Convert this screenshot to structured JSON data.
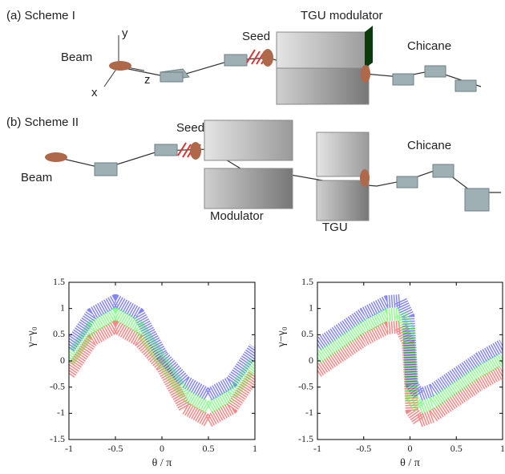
{
  "diagram": {
    "labels": [
      "(a) Scheme I",
      "y",
      "Beam",
      "z",
      "x",
      "Seed",
      "TGU modulator",
      "Chicane",
      "(b) Scheme II",
      "Seed",
      "Beam",
      "Modulator",
      "TGU",
      "Chicane"
    ]
  },
  "chart_data": [
    {
      "type": "line",
      "ylabel": "γ−γ₀",
      "xlabel": "θ / π",
      "x": [
        -1,
        -0.75,
        -0.5,
        -0.25,
        0,
        0.25,
        0.5,
        0.75,
        1
      ],
      "series": [
        {
          "color": "#ff2020",
          "values": [
            -0.25,
            0.4,
            0.65,
            0.4,
            -0.1,
            -0.9,
            -1.15,
            -0.9,
            -0.25
          ]
        },
        {
          "color": "#2020ff",
          "values": [
            0.25,
            0.9,
            1.15,
            0.9,
            0.1,
            -0.4,
            -0.65,
            -0.4,
            0.25
          ]
        },
        {
          "color": "#30ff30",
          "values": [
            0,
            0.65,
            0.9,
            0.65,
            0,
            -0.65,
            -0.9,
            -0.65,
            0
          ]
        }
      ],
      "xlim": [
        -1,
        1
      ],
      "ylim": [
        -1.5,
        1.5
      ],
      "xticks": [
        -1,
        -0.5,
        0,
        0.5,
        1
      ],
      "yticks": [
        -1.5,
        -1,
        -0.5,
        0,
        0.5,
        1,
        1.5
      ]
    },
    {
      "type": "line",
      "ylabel": "γ−γ₀",
      "xlabel": "θ / π",
      "x": [
        -1,
        -0.75,
        -0.5,
        -0.25,
        -0.1,
        -0.02,
        0,
        0.02,
        0.1,
        0.25,
        0.5,
        0.75,
        1
      ],
      "series": [
        {
          "color": "#ff2020",
          "values": [
            -0.2,
            0.1,
            0.4,
            0.63,
            0.65,
            0.35,
            -0.25,
            -0.95,
            -1.15,
            -1.05,
            -0.75,
            -0.45,
            -0.2
          ]
        },
        {
          "color": "#2020ff",
          "values": [
            0.3,
            0.6,
            0.9,
            1.13,
            1.15,
            0.85,
            0.25,
            -0.45,
            -0.65,
            -0.55,
            -0.25,
            0.05,
            0.3
          ]
        },
        {
          "color": "#30ff30",
          "values": [
            0.05,
            0.35,
            0.65,
            0.88,
            0.9,
            0.6,
            0,
            -0.7,
            -0.9,
            -0.8,
            -0.5,
            -0.2,
            0.05
          ]
        }
      ],
      "xlim": [
        -1,
        1
      ],
      "ylim": [
        -1.5,
        1.5
      ],
      "xticks": [
        -1,
        -0.5,
        0,
        0.5,
        1
      ],
      "yticks": [
        -1.5,
        -1,
        -0.5,
        0,
        0.5,
        1,
        1.5
      ]
    }
  ]
}
